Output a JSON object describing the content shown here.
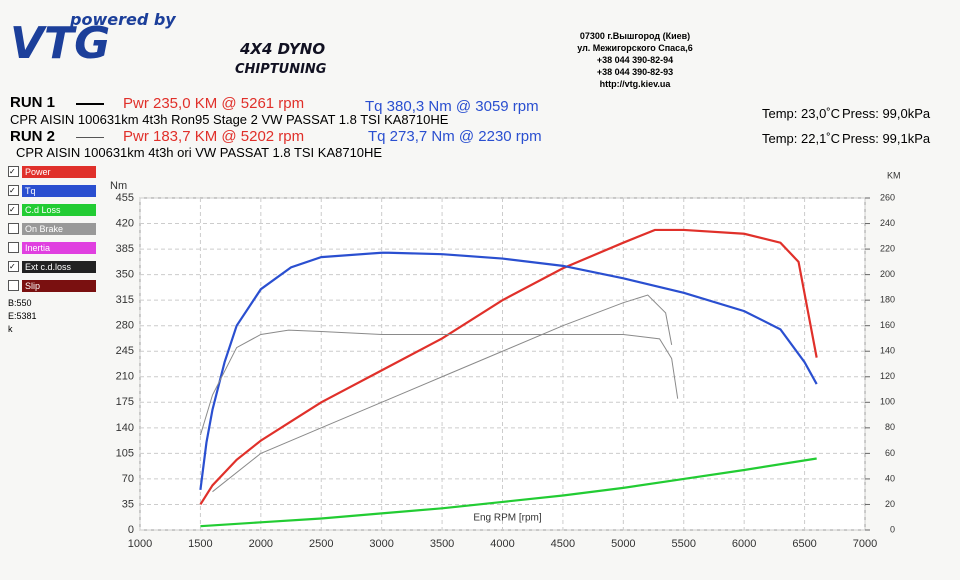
{
  "header": {
    "powered": "powered by",
    "logo": "VTG",
    "dyno": "4X4 DYNO",
    "chiptuning": "CHIPTUNING",
    "address": [
      "07300 г.Вышгород (Киев)",
      "ул. Межигорского Спаса,6",
      "+38 044 390-82-94",
      "+38 044 390-82-93",
      "http://vtg.kiev.ua"
    ]
  },
  "runs": [
    {
      "label": "RUN 1",
      "pwr": "Pwr  235,0 KM @ 5261 rpm",
      "tq": "Tq 380,3 Nm @ 3059 rpm",
      "desc": "CPR AISIN 100631km 4t3h  Ron95 Stage 2 VW PASSAT 1.8 TSI KA8710HE",
      "temp": "Temp: 23,0˚C",
      "press": "Press: 99,0kPa"
    },
    {
      "label": "RUN 2",
      "pwr": "Pwr  183,7 KM @ 5202 rpm",
      "tq": "Tq 273,7 Nm @ 2230 rpm",
      "desc": "CPR AISIN 100631km 4t3h  ori VW PASSAT 1.8 TSI KA8710HE",
      "temp": "Temp: 22,1˚C",
      "press": "Press: 99,1kPa"
    }
  ],
  "options": [
    "On Brake",
    "Inertia",
    "Ext c.d.loss",
    "Slip"
  ],
  "info": [
    "B:550",
    "E:5381",
    "k"
  ],
  "chart_data": {
    "type": "line",
    "xlabel": "Eng RPM [rpm]",
    "ylabel": "Nm",
    "y2label": "KM",
    "xlim": [
      1000,
      7000
    ],
    "xticks": [
      1000,
      1500,
      2000,
      2500,
      3000,
      3500,
      4000,
      4500,
      5000,
      5500,
      6000,
      6500,
      7000
    ],
    "ylim": [
      0,
      455
    ],
    "yticks": [
      0,
      35,
      70,
      105,
      140,
      175,
      210,
      245,
      280,
      315,
      350,
      385,
      420,
      455
    ],
    "y2lim": [
      0,
      260
    ],
    "y2ticks": [
      0,
      20,
      40,
      60,
      80,
      100,
      120,
      140,
      160,
      180,
      200,
      220,
      240,
      260
    ],
    "grid": true,
    "series": [
      {
        "name": "Power",
        "color": "#e0302a",
        "axis": "y2",
        "x": [
          1500,
          1600,
          1800,
          2000,
          2250,
          2500,
          3000,
          3500,
          4000,
          4500,
          5000,
          5261,
          5500,
          6000,
          6300,
          6450,
          6550,
          6600
        ],
        "values": [
          20,
          35,
          55,
          70,
          85,
          100,
          125,
          150,
          180,
          205,
          225,
          235,
          235,
          232,
          225,
          210,
          160,
          135
        ]
      },
      {
        "name": "Tq",
        "color": "#2a4fd0",
        "x": [
          1500,
          1550,
          1600,
          1700,
          1800,
          2000,
          2250,
          2500,
          3000,
          3059,
          3500,
          4000,
          4500,
          5000,
          5500,
          6000,
          6300,
          6500,
          6600
        ],
        "values": [
          55,
          120,
          165,
          230,
          280,
          330,
          360,
          374,
          380,
          380,
          378,
          372,
          362,
          345,
          325,
          300,
          275,
          230,
          200
        ]
      },
      {
        "color": "#8a8a8a",
        "x": [
          1500,
          1600,
          1800,
          2000,
          2230,
          2500,
          3000,
          3500,
          4000,
          4500,
          5000,
          5300,
          5400,
          5450
        ],
        "values": [
          130,
          185,
          250,
          268,
          274,
          272,
          268,
          268,
          268,
          268,
          268,
          262,
          235,
          180
        ]
      },
      {
        "color": "#8a8a8a",
        "axis": "y2",
        "x": [
          1600,
          2000,
          2500,
          3000,
          3500,
          4000,
          4500,
          5000,
          5202,
          5350,
          5400
        ],
        "values": [
          30,
          60,
          80,
          100,
          120,
          140,
          160,
          178,
          184,
          170,
          145
        ]
      },
      {
        "name": "C.d Loss",
        "color": "#22cc33",
        "axis": "y2",
        "x": [
          1500,
          2000,
          2500,
          3000,
          3500,
          4000,
          4500,
          5000,
          5500,
          6000,
          6600
        ],
        "values": [
          3,
          6,
          9,
          13,
          17,
          22,
          27,
          33,
          40,
          47,
          56
        ]
      }
    ]
  }
}
